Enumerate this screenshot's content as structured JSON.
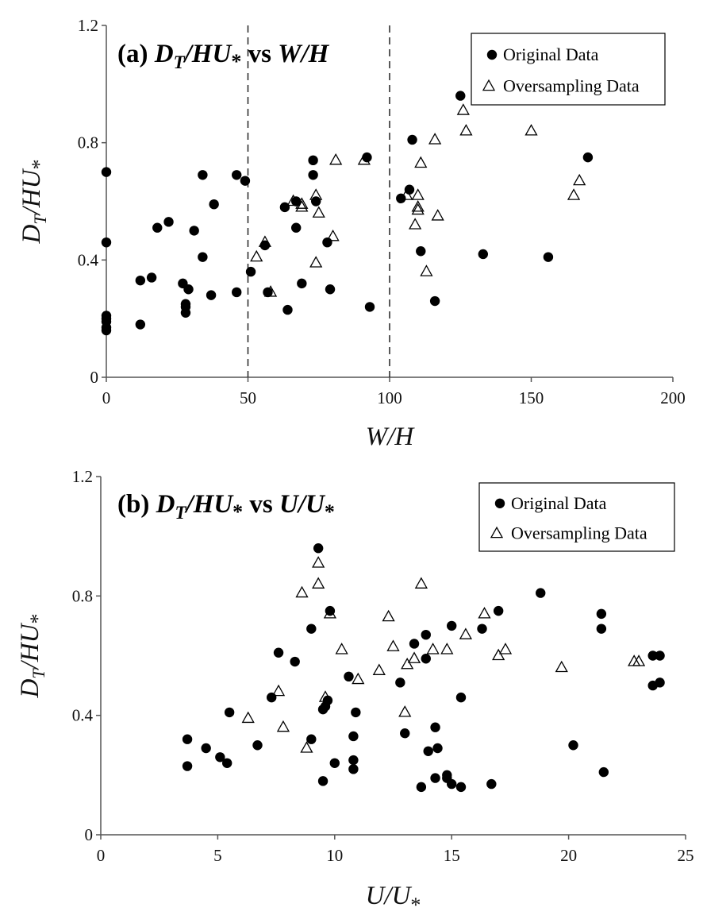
{
  "chart_data": [
    {
      "type": "scatter",
      "panel_label": "(a)",
      "title": "(a) DT/HU* vs W/H",
      "title_parts": {
        "label": "(a)",
        "y": "D",
        "y_sub": "T",
        "y_rest": "/HU",
        "star": "*",
        "vs": "vs",
        "x": "W/H"
      },
      "xlabel": "W/H",
      "ylabel": "DT/HU*",
      "xlim": [
        0,
        200
      ],
      "ylim": [
        0,
        1.2
      ],
      "xticks": [
        "0",
        "50",
        "100",
        "150",
        "200"
      ],
      "yticks": [
        "0",
        "0.4",
        "0.8",
        "1.2"
      ],
      "xtick_values": [
        0,
        50,
        100,
        150,
        200
      ],
      "ytick_values": [
        0,
        0.4,
        0.8,
        1.2
      ],
      "vlines": [
        50,
        100
      ],
      "legend": {
        "position": "top-right",
        "entries": [
          "Original Data",
          "Oversampling Data"
        ]
      },
      "series": [
        {
          "name": "Original Data",
          "marker": "filled-circle",
          "points": [
            [
              0,
              0.7
            ],
            [
              0,
              0.46
            ],
            [
              0,
              0.21
            ],
            [
              0,
              0.2
            ],
            [
              0,
              0.19
            ],
            [
              0,
              0.17
            ],
            [
              0,
              0.16
            ],
            [
              12,
              0.33
            ],
            [
              12,
              0.18
            ],
            [
              16,
              0.34
            ],
            [
              18,
              0.51
            ],
            [
              22,
              0.53
            ],
            [
              31,
              0.5
            ],
            [
              34,
              0.69
            ],
            [
              34,
              0.41
            ],
            [
              27,
              0.32
            ],
            [
              28,
              0.25
            ],
            [
              28,
              0.24
            ],
            [
              28,
              0.22
            ],
            [
              29,
              0.3
            ],
            [
              37,
              0.28
            ],
            [
              38,
              0.59
            ],
            [
              46,
              0.69
            ],
            [
              46,
              0.29
            ],
            [
              49,
              0.67
            ],
            [
              51,
              0.36
            ],
            [
              56,
              0.45
            ],
            [
              57,
              0.29
            ],
            [
              63,
              0.58
            ],
            [
              64,
              0.23
            ],
            [
              67,
              0.6
            ],
            [
              67,
              0.51
            ],
            [
              69,
              0.32
            ],
            [
              73,
              0.74
            ],
            [
              73,
              0.69
            ],
            [
              74,
              0.6
            ],
            [
              78,
              0.46
            ],
            [
              79,
              0.3
            ],
            [
              92,
              0.75
            ],
            [
              93,
              0.24
            ],
            [
              104,
              0.61
            ],
            [
              107,
              0.64
            ],
            [
              108,
              0.81
            ],
            [
              111,
              0.43
            ],
            [
              116,
              0.26
            ],
            [
              125,
              0.96
            ],
            [
              133,
              0.42
            ],
            [
              156,
              0.41
            ],
            [
              170,
              0.75
            ]
          ]
        },
        {
          "name": "Oversampling Data",
          "marker": "open-triangle",
          "points": [
            [
              53,
              0.41
            ],
            [
              56,
              0.46
            ],
            [
              58,
              0.29
            ],
            [
              66,
              0.6
            ],
            [
              69,
              0.58
            ],
            [
              69,
              0.59
            ],
            [
              74,
              0.62
            ],
            [
              74,
              0.39
            ],
            [
              75,
              0.56
            ],
            [
              80,
              0.48
            ],
            [
              81,
              0.74
            ],
            [
              91,
              0.74
            ],
            [
              106,
              0.62
            ],
            [
              110,
              0.62
            ],
            [
              110,
              0.58
            ],
            [
              110,
              0.57
            ],
            [
              109,
              0.52
            ],
            [
              111,
              0.73
            ],
            [
              113,
              0.36
            ],
            [
              116,
              0.81
            ],
            [
              117,
              0.55
            ],
            [
              126,
              0.91
            ],
            [
              127,
              0.84
            ],
            [
              150,
              0.84
            ],
            [
              165,
              0.62
            ],
            [
              167,
              0.67
            ]
          ]
        }
      ]
    },
    {
      "type": "scatter",
      "panel_label": "(b)",
      "title": "(b) DT/HU* vs U/U*",
      "title_parts": {
        "label": "(b)",
        "y": "D",
        "y_sub": "T",
        "y_rest": "/HU",
        "star": "*",
        "vs": "vs",
        "x": "U/U",
        "x_star": "*"
      },
      "xlabel": "U/U*",
      "ylabel": "DT/HU*",
      "xlim": [
        0,
        25
      ],
      "ylim": [
        0,
        1.2
      ],
      "xticks": [
        "0",
        "5",
        "10",
        "15",
        "20",
        "25"
      ],
      "yticks": [
        "0",
        "0.4",
        "0.8",
        "1.2"
      ],
      "xtick_values": [
        0,
        5,
        10,
        15,
        20,
        25
      ],
      "ytick_values": [
        0,
        0.4,
        0.8,
        1.2
      ],
      "vlines": [],
      "legend": {
        "position": "top-right",
        "entries": [
          "Original Data",
          "Oversampling Data"
        ]
      },
      "series": [
        {
          "name": "Original Data",
          "marker": "filled-circle",
          "points": [
            [
              3.7,
              0.32
            ],
            [
              3.7,
              0.23
            ],
            [
              4.5,
              0.29
            ],
            [
              5.1,
              0.26
            ],
            [
              5.4,
              0.24
            ],
            [
              5.5,
              0.41
            ],
            [
              6.7,
              0.3
            ],
            [
              7.3,
              0.46
            ],
            [
              7.6,
              0.61
            ],
            [
              8.3,
              0.58
            ],
            [
              9.0,
              0.69
            ],
            [
              9.3,
              0.96
            ],
            [
              9.5,
              0.42
            ],
            [
              9.6,
              0.43
            ],
            [
              9.7,
              0.45
            ],
            [
              9.8,
              0.75
            ],
            [
              9.0,
              0.32
            ],
            [
              9.5,
              0.18
            ],
            [
              10.0,
              0.24
            ],
            [
              10.6,
              0.53
            ],
            [
              10.8,
              0.33
            ],
            [
              10.8,
              0.25
            ],
            [
              10.8,
              0.22
            ],
            [
              10.9,
              0.41
            ],
            [
              12.8,
              0.51
            ],
            [
              13.0,
              0.34
            ],
            [
              13.4,
              0.64
            ],
            [
              13.7,
              0.16
            ],
            [
              13.9,
              0.67
            ],
            [
              13.9,
              0.59
            ],
            [
              14.0,
              0.28
            ],
            [
              14.3,
              0.36
            ],
            [
              14.3,
              0.19
            ],
            [
              14.4,
              0.29
            ],
            [
              14.8,
              0.2
            ],
            [
              14.8,
              0.19
            ],
            [
              15.0,
              0.7
            ],
            [
              15.0,
              0.17
            ],
            [
              15.4,
              0.46
            ],
            [
              15.4,
              0.16
            ],
            [
              16.3,
              0.69
            ],
            [
              16.7,
              0.17
            ],
            [
              17.0,
              0.75
            ],
            [
              18.8,
              0.81
            ],
            [
              20.2,
              0.3
            ],
            [
              21.4,
              0.74
            ],
            [
              21.4,
              0.69
            ],
            [
              21.5,
              0.21
            ],
            [
              23.6,
              0.6
            ],
            [
              23.6,
              0.5
            ],
            [
              23.9,
              0.6
            ],
            [
              23.9,
              0.51
            ]
          ]
        },
        {
          "name": "Oversampling Data",
          "marker": "open-triangle",
          "points": [
            [
              6.3,
              0.39
            ],
            [
              7.6,
              0.48
            ],
            [
              7.8,
              0.36
            ],
            [
              8.6,
              0.81
            ],
            [
              8.8,
              0.29
            ],
            [
              9.3,
              0.84
            ],
            [
              9.3,
              0.91
            ],
            [
              9.6,
              0.46
            ],
            [
              9.8,
              0.74
            ],
            [
              10.3,
              0.62
            ],
            [
              11.0,
              0.52
            ],
            [
              11.9,
              0.55
            ],
            [
              12.3,
              0.73
            ],
            [
              12.5,
              0.63
            ],
            [
              13.0,
              0.41
            ],
            [
              13.1,
              0.57
            ],
            [
              13.4,
              0.59
            ],
            [
              13.7,
              0.84
            ],
            [
              14.2,
              0.62
            ],
            [
              14.8,
              0.62
            ],
            [
              15.6,
              0.67
            ],
            [
              16.4,
              0.74
            ],
            [
              17.0,
              0.6
            ],
            [
              17.3,
              0.62
            ],
            [
              19.7,
              0.56
            ],
            [
              22.8,
              0.58
            ],
            [
              23.0,
              0.58
            ]
          ]
        }
      ]
    }
  ]
}
